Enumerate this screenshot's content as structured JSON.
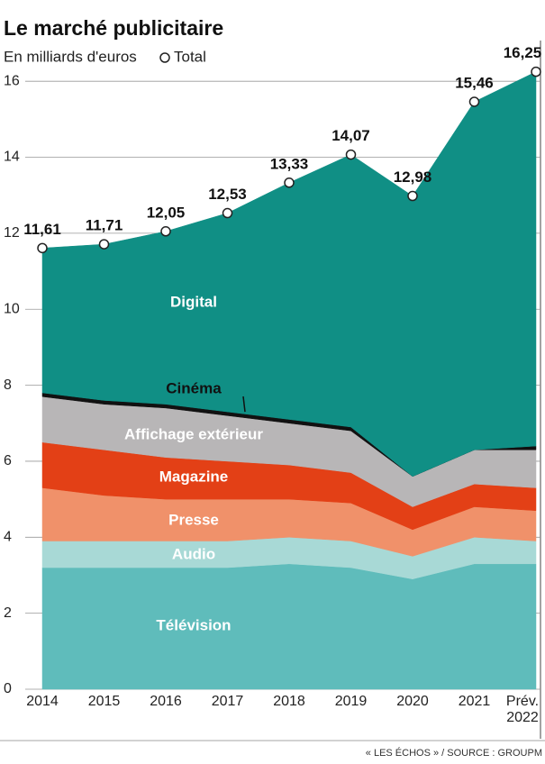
{
  "chart_data": {
    "type": "stacked_area",
    "title": "Le marché publicitaire",
    "subtitle": "En milliards d'euros",
    "source": "« LES ÉCHOS » / SOURCE : GROUPM",
    "categories": [
      "2014",
      "2015",
      "2016",
      "2017",
      "2018",
      "2019",
      "2020",
      "2021",
      "Prév. 2022"
    ],
    "ylim": [
      0,
      17
    ],
    "yticks": [
      0,
      2,
      4,
      6,
      8,
      10,
      12,
      14,
      16
    ],
    "grid": true,
    "series": [
      {
        "name": "Télévision",
        "color": "#5fbcbb",
        "values": [
          3.2,
          3.2,
          3.2,
          3.2,
          3.3,
          3.2,
          2.9,
          3.3,
          3.3
        ]
      },
      {
        "name": "Audio",
        "color": "#a8d9d6",
        "values": [
          0.7,
          0.7,
          0.7,
          0.7,
          0.7,
          0.7,
          0.6,
          0.7,
          0.6
        ]
      },
      {
        "name": "Presse",
        "color": "#f0916a",
        "values": [
          1.4,
          1.2,
          1.1,
          1.1,
          1.0,
          1.0,
          0.7,
          0.8,
          0.8
        ]
      },
      {
        "name": "Magazine",
        "color": "#e34016",
        "values": [
          1.2,
          1.2,
          1.1,
          1.0,
          0.9,
          0.8,
          0.6,
          0.6,
          0.6
        ]
      },
      {
        "name": "Affichage extérieur",
        "color": "#b8b6b7",
        "values": [
          1.2,
          1.2,
          1.3,
          1.2,
          1.1,
          1.1,
          0.8,
          0.9,
          1.0
        ]
      },
      {
        "name": "Cinéma",
        "color": "#111111",
        "values": [
          0.1,
          0.1,
          0.1,
          0.1,
          0.1,
          0.1,
          0.0,
          0.0,
          0.1
        ]
      },
      {
        "name": "Digital",
        "color": "#108f85",
        "values": [
          3.81,
          4.11,
          4.55,
          5.23,
          6.23,
          7.17,
          7.38,
          9.16,
          9.85
        ]
      }
    ],
    "total": {
      "name": "Total",
      "values": [
        11.61,
        11.71,
        12.05,
        12.53,
        13.33,
        14.07,
        12.98,
        15.46,
        16.25
      ],
      "value_labels": [
        "11,61",
        "11,71",
        "12,05",
        "12,53",
        "13,33",
        "14,07",
        "12,98",
        "15,46",
        "16,25"
      ]
    }
  }
}
